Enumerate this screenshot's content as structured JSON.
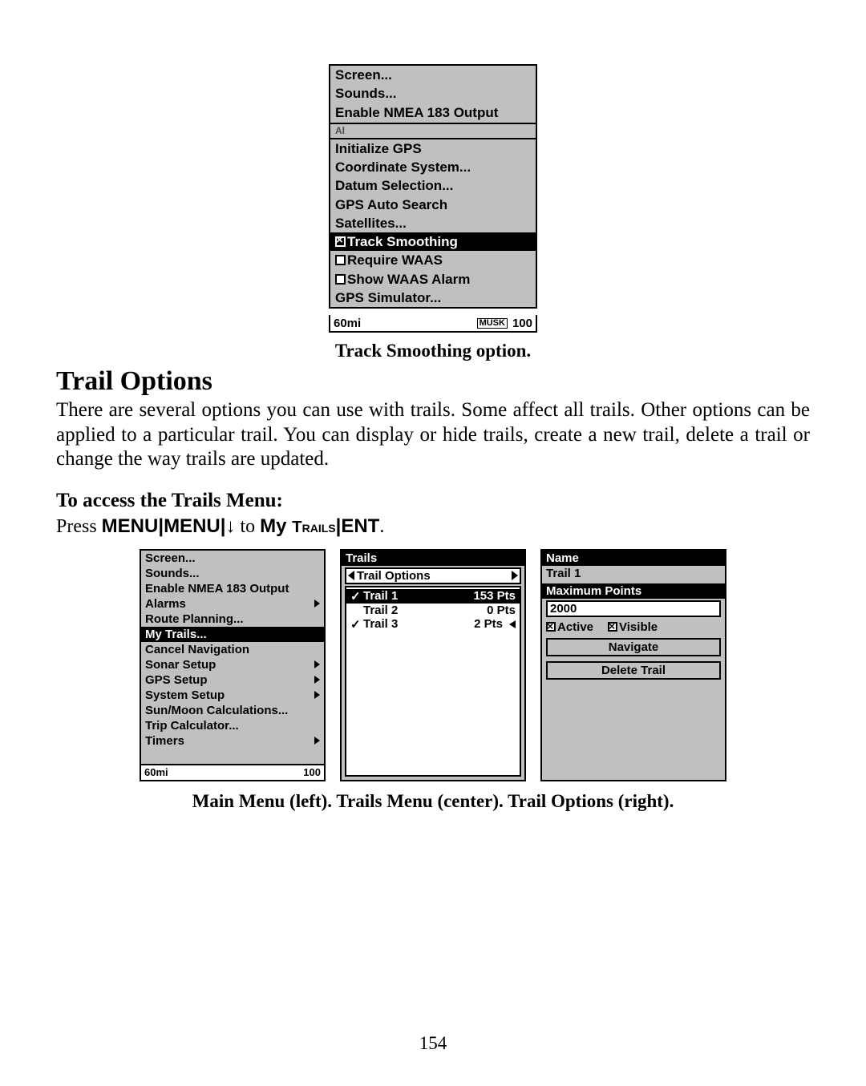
{
  "top_menu": {
    "items_upper": [
      "Screen...",
      "Sounds...",
      "Enable NMEA 183 Output"
    ],
    "partial": "Al",
    "items_mid": [
      "Initialize GPS",
      "Coordinate System...",
      "Datum Selection...",
      "GPS Auto Search",
      "Satellites..."
    ],
    "highlight": "Track Smoothing",
    "highlight_checked": true,
    "items_lower": [
      {
        "label": "Require WAAS",
        "checked": false,
        "type": "check"
      },
      {
        "label": "Show WAAS Alarm",
        "checked": false,
        "type": "check"
      },
      {
        "label": "GPS Simulator...",
        "type": "plain"
      }
    ],
    "status_left": "60mi",
    "status_mid": "MUSK",
    "status_right": "100"
  },
  "caption1": "Track Smoothing option.",
  "heading": "Trail Options",
  "body": "There are several options you can use with trails. Some affect all trails. Other options can be applied to a particular trail. You can display or hide trails, create a new trail, delete a trail or change the way trails are updated.",
  "sub": "To access the Trails Menu:",
  "instr_prefix": "Press ",
  "instr_menu": "MENU",
  "instr_pipe": "|",
  "instr_arrow": "↓",
  "instr_to": " to ",
  "instr_my": "My ",
  "instr_trails": "Trails",
  "instr_ent": "ENT",
  "instr_dot": ".",
  "left_panel": {
    "rows": [
      {
        "label": "Screen...",
        "hl": false
      },
      {
        "label": "Sounds...",
        "hl": false
      },
      {
        "label": "Enable NMEA 183 Output",
        "hl": false
      },
      {
        "label": "Alarms",
        "hl": false,
        "arrow": true
      },
      {
        "label": "Route Planning...",
        "hl": false
      },
      {
        "label": "My Trails...",
        "hl": true
      },
      {
        "label": "Cancel Navigation",
        "hl": false
      },
      {
        "label": "Sonar Setup",
        "hl": false,
        "arrow": true
      },
      {
        "label": "GPS Setup",
        "hl": false,
        "arrow": true
      },
      {
        "label": "System Setup",
        "hl": false,
        "arrow": true
      },
      {
        "label": "Sun/Moon Calculations...",
        "hl": false
      },
      {
        "label": "Trip Calculator...",
        "hl": false
      },
      {
        "label": "Timers",
        "hl": false,
        "arrow": true
      }
    ],
    "status_left": "60mi",
    "status_right": "100"
  },
  "center_panel": {
    "title": "Trails",
    "selector": "Trail Options",
    "trails": [
      {
        "chk": "✓",
        "name": "Trail 1",
        "pts": "153 Pts",
        "hl": true
      },
      {
        "chk": " ",
        "name": "Trail 2",
        "pts": "0 Pts",
        "hl": false
      },
      {
        "chk": "✓",
        "name": "Trail 3",
        "pts": "2 Pts",
        "hl": false,
        "cursor": true
      }
    ]
  },
  "right_panel": {
    "name_label": "Name",
    "name_val": "Trail 1",
    "max_label": "Maximum Points",
    "max_val": "2000",
    "active_label": "Active",
    "visible_label": "Visible",
    "navigate": "Navigate",
    "delete": "Delete Trail"
  },
  "caption2": "Main Menu (left). Trails Menu (center). Trail Options (right).",
  "page": "154"
}
